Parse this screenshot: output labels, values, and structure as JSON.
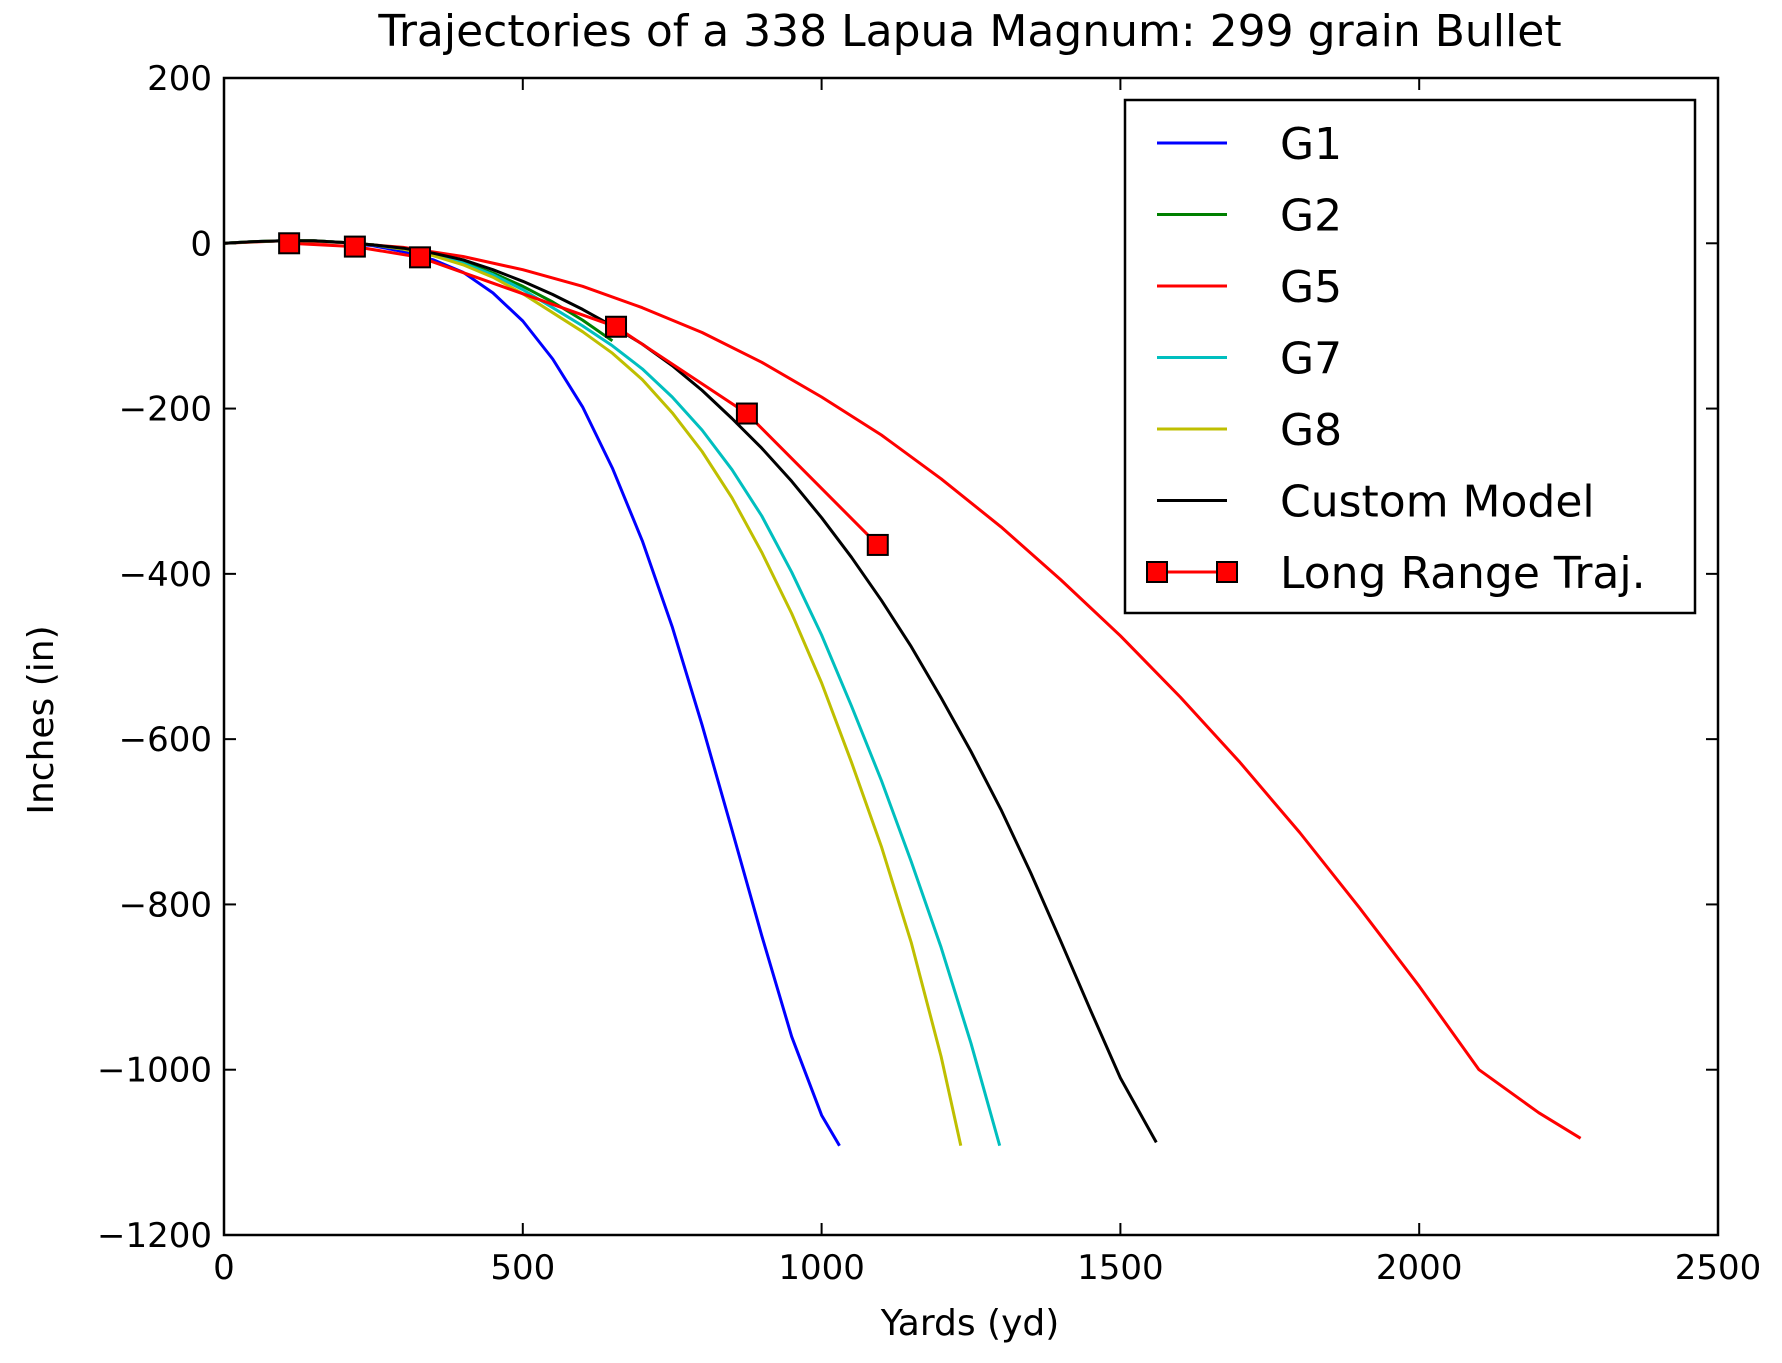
{
  "chart_data": {
    "type": "line",
    "title": "Trajectories of a 338 Lapua Magnum: 299 grain Bullet",
    "xlabel": "Yards (yd)",
    "ylabel": "Inches (in)",
    "xlim": [
      0,
      2500
    ],
    "ylim": [
      -1200,
      200
    ],
    "xticks": [
      0,
      500,
      1000,
      1500,
      2000,
      2500
    ],
    "yticks": [
      -1200,
      -1000,
      -800,
      -600,
      -400,
      -200,
      0,
      200
    ],
    "xtick_labels": [
      "0",
      "500",
      "1000",
      "1500",
      "2000",
      "2500"
    ],
    "ytick_labels": [
      "−1200",
      "−1000",
      "−800",
      "−600",
      "−400",
      "−200",
      "0",
      "200"
    ],
    "grid": false,
    "legend_position": "top-right",
    "series": [
      {
        "name": "G1",
        "color": "#0000ff",
        "x": [
          0,
          50,
          100,
          150,
          200,
          250,
          300,
          350,
          400,
          450,
          500,
          550,
          600,
          650,
          700,
          750,
          800,
          850,
          900,
          950,
          1000,
          1030
        ],
        "y": [
          0,
          2,
          3,
          3,
          1,
          -3,
          -10,
          -20,
          -35,
          -60,
          -94,
          -140,
          -198,
          -272,
          -360,
          -464,
          -583,
          -710,
          -838,
          -960,
          -1055,
          -1092
        ]
      },
      {
        "name": "G2",
        "color": "#008000",
        "x": [
          0,
          50,
          100,
          150,
          200,
          250,
          300,
          350,
          400,
          450,
          500,
          550,
          600,
          650
        ],
        "y": [
          0,
          2,
          3,
          3,
          1,
          -2,
          -7,
          -14,
          -23,
          -36,
          -52,
          -71,
          -93,
          -118
        ]
      },
      {
        "name": "G5",
        "color": "#ff0000",
        "x": [
          0,
          100,
          200,
          300,
          400,
          500,
          600,
          700,
          800,
          900,
          1000,
          1100,
          1200,
          1300,
          1400,
          1500,
          1600,
          1700,
          1800,
          1900,
          2000,
          2100,
          2200,
          2270
        ],
        "y": [
          0,
          3,
          1,
          -5,
          -16,
          -32,
          -52,
          -78,
          -108,
          -144,
          -186,
          -232,
          -285,
          -343,
          -407,
          -475,
          -549,
          -628,
          -713,
          -804,
          -899,
          -1000,
          -1052,
          -1083
        ]
      },
      {
        "name": "G7",
        "color": "#00bfbf",
        "x": [
          0,
          50,
          100,
          150,
          200,
          250,
          300,
          350,
          400,
          450,
          500,
          550,
          600,
          650,
          700,
          750,
          800,
          850,
          900,
          950,
          1000,
          1050,
          1100,
          1150,
          1200,
          1250,
          1298
        ],
        "y": [
          0,
          2,
          3,
          3,
          1,
          -2,
          -7,
          -14,
          -24,
          -38,
          -56,
          -78,
          -100,
          -124,
          -152,
          -186,
          -226,
          -274,
          -330,
          -398,
          -474,
          -560,
          -650,
          -748,
          -852,
          -968,
          -1092
        ]
      },
      {
        "name": "G8",
        "color": "#bfbf00",
        "x": [
          0,
          50,
          100,
          150,
          200,
          250,
          300,
          350,
          400,
          450,
          500,
          550,
          600,
          650,
          700,
          750,
          800,
          850,
          900,
          950,
          1000,
          1050,
          1100,
          1150,
          1200,
          1233
        ],
        "y": [
          0,
          2,
          3,
          3,
          1,
          -2,
          -7,
          -15,
          -26,
          -41,
          -61,
          -84,
          -107,
          -133,
          -165,
          -205,
          -252,
          -308,
          -374,
          -448,
          -532,
          -628,
          -730,
          -846,
          -984,
          -1092
        ]
      },
      {
        "name": "Custom Model",
        "color": "#000000",
        "x": [
          0,
          50,
          100,
          150,
          200,
          250,
          300,
          350,
          400,
          450,
          500,
          550,
          600,
          650,
          700,
          750,
          800,
          850,
          900,
          950,
          1000,
          1050,
          1100,
          1150,
          1200,
          1250,
          1300,
          1350,
          1400,
          1450,
          1500,
          1560
        ],
        "y": [
          0,
          2,
          3,
          3,
          1,
          -2,
          -6,
          -12,
          -20,
          -32,
          -46,
          -62,
          -80,
          -100,
          -122,
          -148,
          -178,
          -212,
          -248,
          -288,
          -332,
          -380,
          -432,
          -488,
          -550,
          -615,
          -685,
          -762,
          -844,
          -928,
          -1010,
          -1088
        ]
      },
      {
        "name": "Long Range Traj.",
        "color": "#ff0000",
        "marker": "square",
        "x": [
          109,
          219,
          328,
          656,
          875,
          1094
        ],
        "y": [
          0,
          -4,
          -17,
          -101,
          -206,
          -365
        ]
      }
    ]
  }
}
